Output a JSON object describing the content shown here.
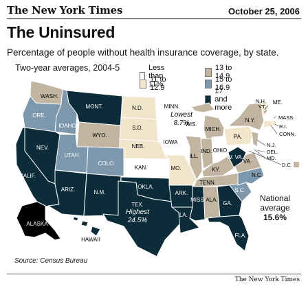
{
  "masthead": "The New York Times",
  "date": "October 25, 2006",
  "title": "The Uninsured",
  "subtitle": "Percentage of people without health insurance coverage, by state.",
  "averages_label": "Two-year averages, 2004-5",
  "legend": [
    {
      "label": "Less than 11%",
      "color": "#ffffff"
    },
    {
      "label": "11 to 12.9",
      "color": "#f1e6cc"
    },
    {
      "label": "13 to 14.9",
      "color": "#c1b5a1"
    },
    {
      "label": "15 to 16.9",
      "color": "#7d98ad"
    },
    {
      "label": "17 and more",
      "color": "#0c2c3a"
    }
  ],
  "annotations": {
    "lowest": "Lowest",
    "lowest_value": "8.7%",
    "highest": "Highest",
    "highest_value": "24.5%",
    "national": "National",
    "national2": "average",
    "national_value": "15.6%"
  },
  "state_labels": {
    "WASH": "WASH.",
    "ORE": "ORE.",
    "IDAHO": "IDAHO",
    "MONT": "MONT.",
    "WYO": "WYO.",
    "NEV": "NEV.",
    "CALIF": "CALIF.",
    "UTAH": "UTAH",
    "COLO": "COLO.",
    "ARIZ": "ARIZ.",
    "NM": "N.M.",
    "ND": "N.D.",
    "SD": "S.D.",
    "NEB": "NEB.",
    "KAN": "KAN.",
    "OKLA": "OKLA.",
    "TEX": "TEX.",
    "MINN": "MINN.",
    "IOWA": "IOWA",
    "MO": "MO.",
    "ARK": "ARK.",
    "LA": "LA.",
    "WIS": "WIS.",
    "ILL": "ILL.",
    "MICH": "MICH.",
    "IND": "IND.",
    "OHIO": "OHIO",
    "KY": "KY.",
    "TENN": "TENN.",
    "MISS": "MISS.",
    "ALA": "ALA.",
    "GA": "GA.",
    "FLA": "FLA.",
    "SC": "S.C.",
    "NC": "N.C.",
    "VA": "VA.",
    "WV": "W.\nVA.",
    "PA": "PA.",
    "NY": "N.Y.",
    "ME": "ME.",
    "NH": "N.H.",
    "VT": "VT.",
    "MASS": "MASS.",
    "RI": "R.I.",
    "CONN": "CONN.",
    "NJ": "N.J.",
    "DEL": "DEL.",
    "MD": "MD.",
    "DC": "D.C.",
    "ALASKA": "ALASKA",
    "HAWAII": "HAWAII"
  },
  "source": "Source: Census Bureau",
  "credit": "The New York Times"
}
